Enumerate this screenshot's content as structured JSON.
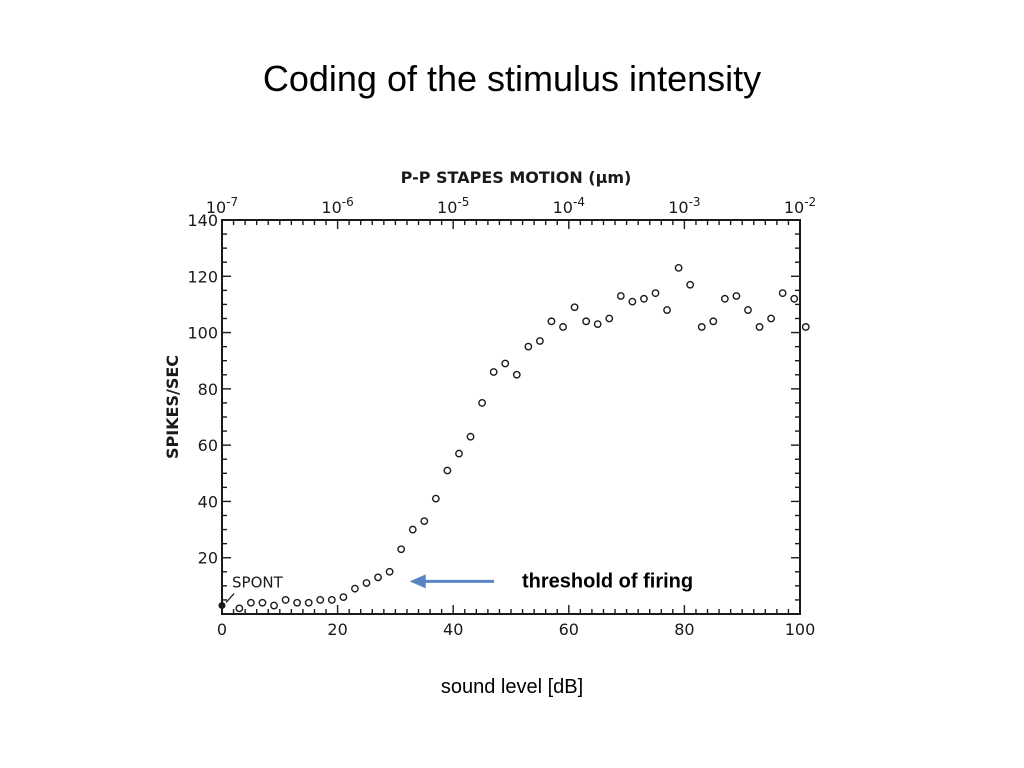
{
  "slide": {
    "title": "Coding of the stimulus intensity",
    "bottom_label": "sound level [dB]"
  },
  "chart_data": {
    "type": "scatter",
    "ylabel": "SPIKES/SEC",
    "top_axis_label": "P-P STAPES MOTION (μm)",
    "top_ticks": [
      {
        "x": 0,
        "label": "10-7"
      },
      {
        "x": 20,
        "label": "10-6"
      },
      {
        "x": 40,
        "label": "10-5"
      },
      {
        "x": 60,
        "label": "10-4"
      },
      {
        "x": 80,
        "label": "10-3"
      },
      {
        "x": 100,
        "label": "10-2"
      }
    ],
    "xlim": [
      0,
      100
    ],
    "ylim": [
      0,
      140
    ],
    "x_ticks": [
      0,
      20,
      40,
      60,
      80,
      100
    ],
    "y_ticks": [
      20,
      40,
      60,
      80,
      100,
      120,
      140
    ],
    "spont": {
      "label": "SPONT",
      "x": 0,
      "y": 3
    },
    "annotation": {
      "text": "threshold of firing",
      "points_to_x": 33,
      "points_to_y": 13
    },
    "colors": {
      "markers": "#1a1a1a",
      "axes": "#1a1a1a",
      "arrow": "#5b84c4",
      "annotation": "#000000"
    },
    "points": [
      {
        "x": 3,
        "y": 2
      },
      {
        "x": 5,
        "y": 4
      },
      {
        "x": 7,
        "y": 4
      },
      {
        "x": 9,
        "y": 3
      },
      {
        "x": 11,
        "y": 5
      },
      {
        "x": 13,
        "y": 4
      },
      {
        "x": 15,
        "y": 4
      },
      {
        "x": 17,
        "y": 5
      },
      {
        "x": 19,
        "y": 5
      },
      {
        "x": 21,
        "y": 6
      },
      {
        "x": 23,
        "y": 9
      },
      {
        "x": 25,
        "y": 11
      },
      {
        "x": 27,
        "y": 13
      },
      {
        "x": 29,
        "y": 15
      },
      {
        "x": 31,
        "y": 23
      },
      {
        "x": 33,
        "y": 30
      },
      {
        "x": 35,
        "y": 33
      },
      {
        "x": 37,
        "y": 41
      },
      {
        "x": 39,
        "y": 51
      },
      {
        "x": 41,
        "y": 57
      },
      {
        "x": 43,
        "y": 63
      },
      {
        "x": 45,
        "y": 75
      },
      {
        "x": 47,
        "y": 86
      },
      {
        "x": 49,
        "y": 89
      },
      {
        "x": 51,
        "y": 85
      },
      {
        "x": 53,
        "y": 95
      },
      {
        "x": 55,
        "y": 97
      },
      {
        "x": 57,
        "y": 104
      },
      {
        "x": 59,
        "y": 102
      },
      {
        "x": 61,
        "y": 109
      },
      {
        "x": 63,
        "y": 104
      },
      {
        "x": 65,
        "y": 103
      },
      {
        "x": 67,
        "y": 105
      },
      {
        "x": 69,
        "y": 113
      },
      {
        "x": 71,
        "y": 111
      },
      {
        "x": 73,
        "y": 112
      },
      {
        "x": 75,
        "y": 114
      },
      {
        "x": 77,
        "y": 108
      },
      {
        "x": 79,
        "y": 123
      },
      {
        "x": 81,
        "y": 117
      },
      {
        "x": 83,
        "y": 102
      },
      {
        "x": 85,
        "y": 104
      },
      {
        "x": 87,
        "y": 112
      },
      {
        "x": 89,
        "y": 113
      },
      {
        "x": 91,
        "y": 108
      },
      {
        "x": 93,
        "y": 102
      },
      {
        "x": 95,
        "y": 105
      },
      {
        "x": 97,
        "y": 114
      },
      {
        "x": 99,
        "y": 112
      },
      {
        "x": 101,
        "y": 102
      }
    ]
  }
}
